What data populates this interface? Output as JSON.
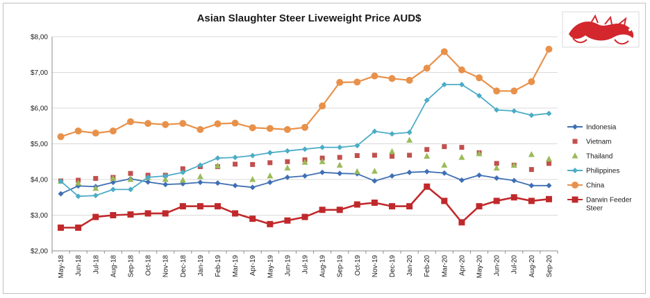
{
  "chart_data": {
    "type": "line",
    "title": "Asian Slaughter Steer Liveweight Price AUD$",
    "ylim": [
      2,
      8
    ],
    "yticks": [
      "$2,00",
      "$3,00",
      "$4,00",
      "$5,00",
      "$6,00",
      "$7,00",
      "$8,00"
    ],
    "grid": true,
    "legend_position": "right",
    "categories": [
      "May-18",
      "Jun-18",
      "Jul-18",
      "Aug-18",
      "Sep-18",
      "Oct-18",
      "Nov-18",
      "Dec-18",
      "Jan-19",
      "Feb-19",
      "Mar-19",
      "Apr-19",
      "May-19",
      "Jun-19",
      "Jul-19",
      "Aug-19",
      "Sep-19",
      "Oct-19",
      "Nov-19",
      "Dec-19",
      "Jan-20",
      "Feb-20",
      "Mar-20",
      "Apr-20",
      "May-20",
      "Jun-20",
      "Jul-20",
      "Aug-20",
      "Sep-20"
    ],
    "series": [
      {
        "name": "Indonesia",
        "color": "#3f6fb4",
        "style": "line-diamond",
        "values": [
          3.6,
          3.82,
          3.8,
          3.92,
          4.02,
          3.93,
          3.86,
          3.88,
          3.92,
          3.9,
          3.83,
          3.78,
          3.92,
          4.06,
          4.1,
          4.2,
          4.17,
          4.16,
          3.96,
          4.1,
          4.2,
          4.22,
          4.18,
          3.98,
          4.12,
          4.04,
          3.97,
          3.83,
          3.83
        ]
      },
      {
        "name": "Vietnam",
        "color": "#c0504d",
        "style": "marker-square",
        "values": [
          3.96,
          3.98,
          4.03,
          4.06,
          4.17,
          4.12,
          4.12,
          4.3,
          4.36,
          4.36,
          4.43,
          4.42,
          4.47,
          4.5,
          4.55,
          4.6,
          4.62,
          4.67,
          4.68,
          4.65,
          4.68,
          4.84,
          4.92,
          4.9,
          4.75,
          4.45,
          4.4,
          4.28,
          4.45
        ]
      },
      {
        "name": "Thailand",
        "color": "#9bbb59",
        "style": "marker-triangle",
        "values": [
          3.95,
          3.9,
          3.75,
          4.03,
          4.0,
          4.05,
          4.0,
          3.98,
          4.08,
          4.38,
          null,
          4.0,
          4.1,
          4.32,
          4.48,
          4.5,
          4.4,
          4.22,
          4.23,
          4.78,
          5.1,
          4.65,
          4.4,
          4.62,
          4.72,
          4.32,
          4.4,
          4.7,
          4.57
        ]
      },
      {
        "name": "Philippines",
        "color": "#4bacc6",
        "style": "line-diamond",
        "values": [
          3.95,
          3.53,
          3.55,
          3.72,
          3.72,
          4.06,
          4.1,
          4.2,
          4.4,
          4.6,
          4.62,
          4.67,
          4.75,
          4.8,
          4.85,
          4.9,
          4.9,
          4.95,
          5.35,
          5.28,
          5.32,
          6.22,
          6.66,
          6.66,
          6.35,
          5.95,
          5.92,
          5.8,
          5.85
        ]
      },
      {
        "name": "China",
        "color": "#e8914a",
        "style": "line-circle",
        "values": [
          5.2,
          5.36,
          5.3,
          5.36,
          5.62,
          5.57,
          5.54,
          5.57,
          5.4,
          5.56,
          5.58,
          5.45,
          5.43,
          5.4,
          5.46,
          6.06,
          6.72,
          6.73,
          6.9,
          6.83,
          6.78,
          7.12,
          7.58,
          7.07,
          6.85,
          6.48,
          6.48,
          6.74,
          7.65
        ]
      },
      {
        "name": "Darwin Feeder Steer",
        "color": "#c0292b",
        "style": "line-square",
        "values": [
          2.65,
          2.65,
          2.95,
          3.0,
          3.02,
          3.05,
          3.05,
          3.25,
          3.25,
          3.25,
          3.05,
          2.9,
          2.75,
          2.85,
          2.95,
          3.15,
          3.15,
          3.3,
          3.35,
          3.25,
          3.25,
          3.8,
          3.4,
          2.8,
          3.25,
          3.4,
          3.5,
          3.4,
          3.45
        ]
      }
    ]
  }
}
